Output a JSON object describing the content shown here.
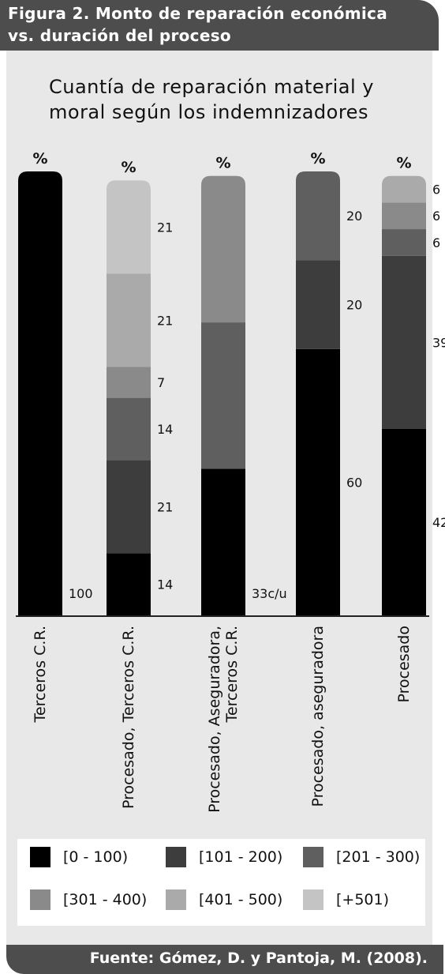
{
  "figure": {
    "header_line1": "Figura 2. Monto de reparación económica",
    "header_line2": "vs. duración del proceso",
    "source": "Fuente: Gómez, D. y Pantoja, M. (2008)."
  },
  "chart_data": {
    "type": "bar",
    "stacked": true,
    "title_line1": "Cuantía de reparación material y",
    "title_line2": "moral según los indemnizadores",
    "percent_symbol": "%",
    "categories": [
      "Terceros C.R.",
      "Procesado, Terceros C.R.",
      "Procesado, Aseguradora, Terceros C.R.",
      "Procesado, aseguradora",
      "Procesado"
    ],
    "category_label_lines": [
      [
        "Terceros C.R."
      ],
      [
        "Procesado, Terceros C.R."
      ],
      [
        "Procesado, Aseguradora,",
        "Terceros C.R."
      ],
      [
        "Procesado, aseguradora"
      ],
      [
        "Procesado"
      ]
    ],
    "series": [
      {
        "name": "[0 - 100)",
        "color": "#000000",
        "values": [
          100,
          14,
          33,
          60,
          42
        ]
      },
      {
        "name": "[101 - 200)",
        "color": "#3d3d3d",
        "values": [
          0,
          21,
          0,
          20,
          39
        ]
      },
      {
        "name": "[201 - 300)",
        "color": "#5f5f5f",
        "values": [
          0,
          14,
          33,
          20,
          6
        ]
      },
      {
        "name": "[301 - 400)",
        "color": "#8a8a8a",
        "values": [
          0,
          7,
          33,
          0,
          6
        ]
      },
      {
        "name": "[401 - 500)",
        "color": "#aaaaaa",
        "values": [
          0,
          21,
          0,
          0,
          6
        ]
      },
      {
        "name": "[+501)",
        "color": "#c4c4c4",
        "values": [
          0,
          21,
          0,
          0,
          0
        ]
      }
    ],
    "data_labels": [
      [
        "100"
      ],
      [
        "14",
        "21",
        "14",
        "7",
        "21",
        "21"
      ],
      [
        "33c/u"
      ],
      [
        "60",
        "20",
        "20"
      ],
      [
        "42",
        "39",
        "6",
        "6",
        "6"
      ]
    ],
    "legend_position": "bottom",
    "grid": false
  }
}
